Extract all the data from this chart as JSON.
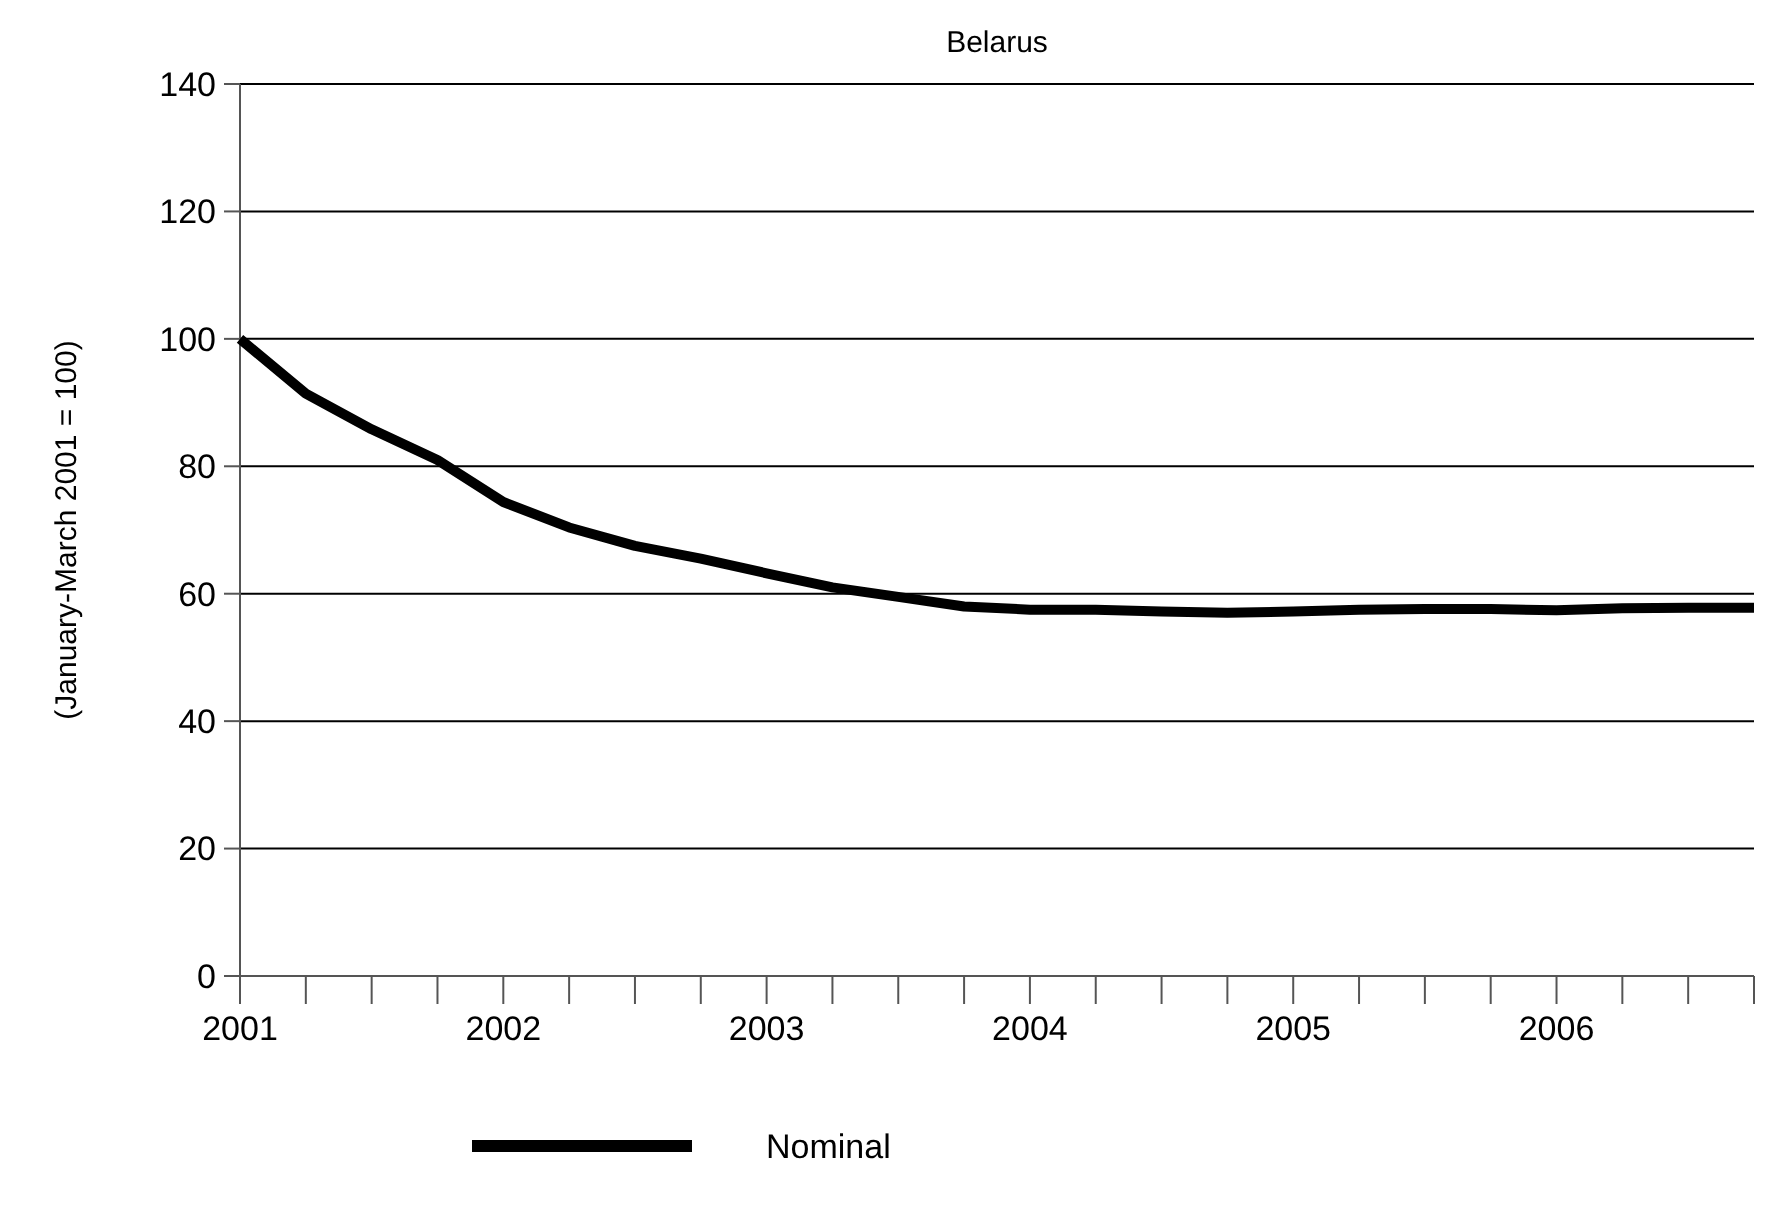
{
  "chart_data": {
    "type": "line",
    "title": "Belarus",
    "ylabel": "(January-March 2001 = 100)",
    "x": [
      2001,
      2001.25,
      2001.5,
      2001.75,
      2002,
      2002.25,
      2002.5,
      2002.75,
      2003,
      2003.25,
      2003.5,
      2003.75,
      2004,
      2004.25,
      2004.5,
      2004.75,
      2005,
      2005.25,
      2005.5,
      2005.75,
      2006,
      2006.25,
      2006.5,
      2006.75
    ],
    "series": [
      {
        "name": "Nominal",
        "color": "#000000",
        "values": [
          100,
          91.4,
          85.8,
          81,
          74.4,
          70.4,
          67.5,
          65.5,
          63.2,
          61,
          59.5,
          58,
          57.5,
          57.5,
          57.2,
          57,
          57.2,
          57.5,
          57.6,
          57.6,
          57.4,
          57.7,
          57.8,
          57.8
        ]
      }
    ],
    "xlim": [
      2001,
      2006.75
    ],
    "xticks": [
      2001,
      {
        "value": 2001.25,
        "label": null
      },
      {
        "value": 2001.5,
        "label": null
      },
      {
        "value": 2001.75,
        "label": null
      },
      2002,
      {
        "value": 2002.25,
        "label": null
      },
      {
        "value": 2002.5,
        "label": null
      },
      {
        "value": 2002.75,
        "label": null
      },
      2003,
      {
        "value": 2003.25,
        "label": null
      },
      {
        "value": 2003.5,
        "label": null
      },
      {
        "value": 2003.75,
        "label": null
      },
      2004,
      {
        "value": 2004.25,
        "label": null
      },
      {
        "value": 2004.5,
        "label": null
      },
      {
        "value": 2004.75,
        "label": null
      },
      2005,
      {
        "value": 2005.25,
        "label": null
      },
      {
        "value": 2005.5,
        "label": null
      },
      {
        "value": 2005.75,
        "label": null
      },
      2006,
      {
        "value": 2006.25,
        "label": null
      },
      {
        "value": 2006.5,
        "label": null
      },
      {
        "value": 2006.75,
        "label": null
      }
    ],
    "ylim": [
      0,
      140
    ],
    "yticks": [
      0,
      20,
      40,
      60,
      80,
      100,
      120,
      140
    ],
    "grid": "y",
    "legend": "bottom",
    "line_style": "solid",
    "marker": "none"
  }
}
